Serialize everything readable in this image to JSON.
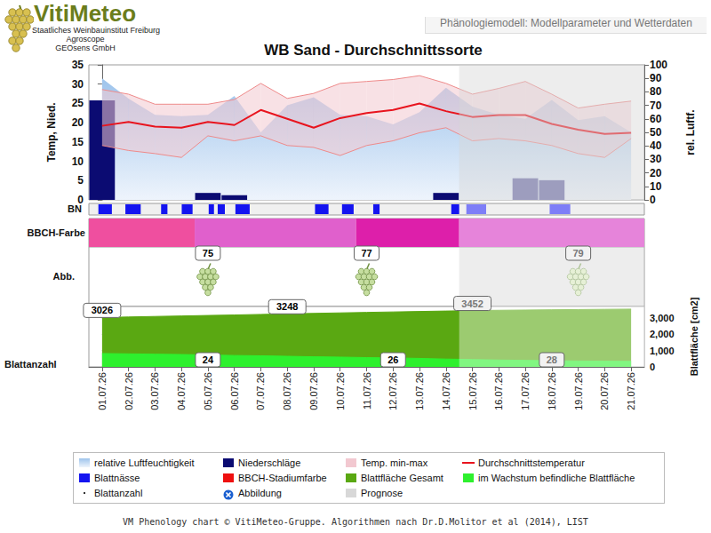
{
  "header": {
    "logo": "VitiMeteo",
    "institutions": [
      "Staatliches Weinbauinstitut Freiburg",
      "Agroscope",
      "GEOsens GmbH"
    ],
    "page_title": "Phänologiemodell: Modellparameter und Wetterdaten"
  },
  "chart_data": {
    "type": "phenology",
    "title": "WB Sand - Durchschnittssorte",
    "categories": [
      "01.07.26",
      "02.07.26",
      "03.07.26",
      "04.07.26",
      "05.07.26",
      "06.07.26",
      "07.07.26",
      "08.07.26",
      "09.07.26",
      "10.07.26",
      "11.07.26",
      "12.07.26",
      "13.07.26",
      "14.07.26",
      "15.07.26",
      "16.07.26",
      "17.07.26",
      "18.07.26",
      "19.07.26",
      "20.07.26",
      "21.07.26"
    ],
    "grid": false,
    "legend": "bottom",
    "prognosis": {
      "name": "Prognose",
      "from": "15.07.26",
      "color": "#d8d8d8"
    },
    "weather": {
      "ylabel": "Temp, Nied.",
      "y2label": "rel. Luftf.",
      "ylim": [
        0,
        35
      ],
      "yticks": [
        0,
        5,
        10,
        15,
        20,
        25,
        30,
        35
      ],
      "y2lim": [
        0,
        100
      ],
      "y2ticks": [
        0,
        10,
        20,
        30,
        40,
        50,
        60,
        70,
        80,
        90,
        100
      ],
      "series": [
        {
          "name": "relative Luftfeuchtigkeit",
          "type": "area",
          "axis": "y2",
          "color": "#9ec4ec",
          "values": [
            90,
            75,
            63,
            62,
            63,
            77,
            50,
            70,
            76,
            63,
            62,
            56,
            65,
            83,
            69,
            63,
            60,
            74,
            59,
            62,
            50
          ]
        },
        {
          "name": "Niederschläge",
          "type": "bar",
          "color": "#0b0b72",
          "values": [
            25.8,
            0,
            0,
            0,
            1.8,
            1.2,
            0,
            0,
            0,
            0,
            0,
            0,
            0,
            1.8,
            0,
            0,
            5.6,
            5.1,
            0,
            0,
            0
          ]
        },
        {
          "name": "Temp. min-max",
          "type": "band",
          "color": "#f2c8d0",
          "low": [
            14.1,
            12.8,
            12,
            11,
            16.6,
            15.3,
            16.6,
            14.1,
            13.6,
            11.5,
            14.1,
            15.3,
            17.4,
            18.7,
            15.3,
            15.9,
            15.3,
            14.1,
            12,
            11,
            15.9
          ],
          "high": [
            28.6,
            27.4,
            24.8,
            24.8,
            24.8,
            26,
            30.2,
            26.3,
            27.6,
            30.2,
            30.7,
            31.2,
            32.2,
            30.2,
            27.4,
            28.9,
            30.7,
            27.4,
            23.8,
            24.8,
            25.6
          ]
        },
        {
          "name": "Durchschnittstemperatur",
          "type": "line",
          "color": "#e8141e",
          "values": [
            19.2,
            20.2,
            19,
            18.7,
            20.2,
            19.4,
            23.3,
            21,
            18.7,
            21.2,
            22.5,
            23.3,
            25,
            23,
            21.5,
            22,
            22,
            19.7,
            18.2,
            17.1,
            17.4
          ]
        }
      ]
    },
    "leaf_wetness": {
      "label": "BN",
      "name": "Blattnässe",
      "color": "#1414f0",
      "intervals": [
        [
          -0.14,
          0.37
        ],
        [
          0.88,
          1.46
        ],
        [
          2.23,
          2.47
        ],
        [
          3.01,
          3.42
        ],
        [
          4.03,
          4.23
        ],
        [
          4.37,
          4.64
        ],
        [
          5.04,
          5.58
        ],
        [
          8.05,
          8.56
        ],
        [
          9.07,
          9.51
        ],
        [
          10.25,
          10.49
        ],
        [
          13.2,
          13.5
        ],
        [
          13.77,
          14.52
        ],
        [
          16.92,
          17.7
        ]
      ]
    },
    "bbch": {
      "label": "BBCH-Farbe",
      "name": "BBCH-Stadiumfarbe",
      "color": "#ee1010",
      "segments": [
        {
          "from": -0.5,
          "to": 3.5,
          "color": "#ef4f9f"
        },
        {
          "from": 3.5,
          "to": 9.6,
          "color": "#e060cc"
        },
        {
          "from": 9.6,
          "to": 13.5,
          "color": "#dd1faa"
        },
        {
          "from": 13.5,
          "to": 20.5,
          "color": "#e684da"
        }
      ],
      "stages": [
        {
          "date": "05.07.26",
          "value": 75
        },
        {
          "date": "11.07.26",
          "value": 77
        },
        {
          "date": "19.07.26",
          "value": 79
        }
      ]
    },
    "images": {
      "label": "Abb.",
      "name": "Abbildung",
      "color": "#1a5fd0",
      "marker": "cross"
    },
    "leaf": {
      "label": "Blattanzahl",
      "y2label": "Blattfläche [cm2]",
      "y2lim": [
        0,
        3700
      ],
      "y2ticks": [
        0,
        {
          "value": 1000,
          "label": "1,000"
        },
        {
          "value": 2000,
          "label": "2,000"
        },
        {
          "value": 3000,
          "label": "3,000"
        }
      ],
      "labelled_dates": [
        "01.07.26",
        "08.07.26",
        "15.07.26"
      ],
      "series": [
        {
          "name": "Blattfläche Gesamt",
          "type": "area",
          "axis": "y2",
          "color": "#5aa812",
          "values": [
            3026,
            3058,
            3090,
            3120,
            3150,
            3180,
            3214,
            3248,
            3278,
            3308,
            3338,
            3366,
            3394,
            3422,
            3452,
            3468,
            3484,
            3500,
            3514,
            3528,
            3540
          ]
        },
        {
          "name": "im Wachstum befindliche Blattfläche",
          "type": "area",
          "axis": "y2",
          "color": "#2ef02e",
          "values": [
            820,
            800,
            780,
            760,
            730,
            700,
            680,
            650,
            620,
            600,
            570,
            550,
            520,
            480,
            450,
            420,
            400,
            380,
            360,
            350,
            340
          ]
        }
      ],
      "leaf_count": {
        "name": "Blattanzahl",
        "marker": "dot",
        "points": [
          {
            "date": "05.07.26",
            "value": 24
          },
          {
            "date": "12.07.26",
            "value": 26
          },
          {
            "date": "18.07.26",
            "value": 28
          }
        ]
      }
    }
  },
  "footer": "VM Phenology chart © VitiMeteo-Gruppe. Algorithmen nach Dr.D.Molitor et al (2014), LIST"
}
